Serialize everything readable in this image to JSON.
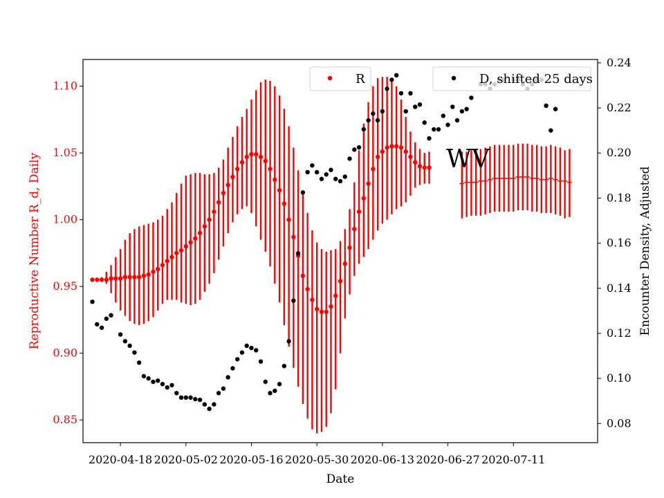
{
  "chart_data": {
    "type": "scatter",
    "title": "",
    "annotation": "WV",
    "xlabel": "Date",
    "ylabel_left": "Reproductive Number R_d, Daily",
    "ylabel_right": "Encounter Density, Adjusted",
    "x_ticks": [
      "2020-04-18",
      "2020-05-02",
      "2020-05-16",
      "2020-05-30",
      "2020-06-13",
      "2020-06-27",
      "2020-07-11"
    ],
    "y_left_ticks": [
      "0.85",
      "0.90",
      "0.95",
      "1.00",
      "1.05",
      "1.10"
    ],
    "y_right_ticks": [
      "0.08",
      "0.10",
      "0.12",
      "0.14",
      "0.16",
      "0.18",
      "0.20",
      "0.22",
      "0.24"
    ],
    "xlim": [
      "2020-04-10",
      "2020-07-29"
    ],
    "ylim_left": [
      0.833,
      1.12
    ],
    "ylim_right": [
      0.0715,
      0.2415
    ],
    "legend": [
      {
        "label": "R",
        "color": "#ff0000",
        "placement": "top-center"
      },
      {
        "label": "D, shifted 25 days",
        "color": "#000000",
        "placement": "top-right"
      }
    ],
    "colors": {
      "R": "#ff0000",
      "D": "#000000"
    },
    "series": [
      {
        "name": "R",
        "axis": "left",
        "start_date": "2020-04-12",
        "values": [
          0.955,
          0.955,
          0.955,
          0.955,
          0.956,
          0.956,
          0.956,
          0.957,
          0.957,
          0.957,
          0.957,
          0.958,
          0.959,
          0.961,
          0.963,
          0.966,
          0.969,
          0.972,
          0.975,
          0.977,
          0.98,
          0.983,
          0.986,
          0.99,
          0.995,
          1.0,
          1.006,
          1.013,
          1.02,
          1.026,
          1.032,
          1.038,
          1.043,
          1.047,
          1.049,
          1.049,
          1.047,
          1.044,
          1.038,
          1.03,
          1.022,
          1.012,
          1.0,
          0.987,
          0.973,
          0.958,
          0.948,
          0.94,
          0.933,
          0.931,
          0.931,
          0.935,
          0.943,
          0.954,
          0.967,
          0.979,
          0.993,
          1.006,
          1.016,
          1.027,
          1.038,
          1.047,
          1.051,
          1.054,
          1.055,
          1.055,
          1.054,
          1.051,
          1.047,
          1.043,
          1.04,
          1.039,
          1.039
        ],
        "err_low": [
          0.955,
          0.955,
          0.955,
          0.952,
          0.945,
          0.938,
          0.932,
          0.928,
          0.924,
          0.922,
          0.921,
          0.922,
          0.924,
          0.927,
          0.932,
          0.937,
          0.94,
          0.94,
          0.94,
          0.938,
          0.937,
          0.936,
          0.937,
          0.94,
          0.946,
          0.952,
          0.96,
          0.97,
          0.98,
          0.99,
          0.998,
          1.004,
          1.008,
          1.01,
          1.005,
          0.995,
          0.985,
          0.976,
          0.965,
          0.952,
          0.938,
          0.921,
          0.905,
          0.889,
          0.875,
          0.862,
          0.851,
          0.843,
          0.84,
          0.841,
          0.845,
          0.855,
          0.873,
          0.9,
          0.926,
          0.944,
          0.958,
          0.967,
          0.972,
          0.978,
          0.985,
          0.992,
          0.997,
          1.0,
          1.004,
          1.008,
          1.01,
          1.013,
          1.018,
          1.024,
          1.026,
          1.027,
          1.027
        ],
        "err_high": [
          0.955,
          0.955,
          0.957,
          0.961,
          0.966,
          0.972,
          0.978,
          0.985,
          0.99,
          0.993,
          0.995,
          0.996,
          0.997,
          0.998,
          1.0,
          1.003,
          1.008,
          1.013,
          1.02,
          1.027,
          1.033,
          1.034,
          1.035,
          1.035,
          1.034,
          1.034,
          1.035,
          1.039,
          1.045,
          1.054,
          1.062,
          1.07,
          1.077,
          1.083,
          1.09,
          1.097,
          1.103,
          1.105,
          1.104,
          1.1,
          1.093,
          1.083,
          1.07,
          1.054,
          1.037,
          1.02,
          1.005,
          0.992,
          0.983,
          0.978,
          0.976,
          0.977,
          0.978,
          0.984,
          0.993,
          1.008,
          1.028,
          1.052,
          1.072,
          1.088,
          1.1,
          1.106,
          1.107,
          1.107,
          1.106,
          1.1,
          1.09,
          1.077,
          1.066,
          1.058,
          1.053,
          1.05,
          1.051
        ]
      },
      {
        "name": "R_projection",
        "axis": "left",
        "start_date": "2020-06-30",
        "values": [
          1.027,
          1.028,
          1.028,
          1.028,
          1.029,
          1.029,
          1.03,
          1.031,
          1.031,
          1.031,
          1.031,
          1.031,
          1.032,
          1.032,
          1.032,
          1.031,
          1.031,
          1.03,
          1.03,
          1.031,
          1.03,
          1.029,
          1.029,
          1.028
        ],
        "err_low": [
          1.001,
          1.002,
          1.003,
          1.003,
          1.003,
          1.004,
          1.005,
          1.006,
          1.006,
          1.006,
          1.006,
          1.006,
          1.007,
          1.007,
          1.007,
          1.006,
          1.006,
          1.005,
          1.005,
          1.005,
          1.004,
          1.003,
          1.001,
          1.002
        ],
        "err_high": [
          1.051,
          1.051,
          1.052,
          1.052,
          1.053,
          1.054,
          1.055,
          1.056,
          1.056,
          1.056,
          1.056,
          1.056,
          1.057,
          1.057,
          1.057,
          1.056,
          1.056,
          1.055,
          1.055,
          1.056,
          1.055,
          1.054,
          1.052,
          1.053
        ]
      },
      {
        "name": "D, shifted 25 days",
        "axis": "right",
        "start_date": "2020-04-12",
        "values": [
          0.134,
          0.124,
          0.1225,
          0.1265,
          0.128,
          null,
          0.1195,
          0.1165,
          0.1145,
          0.1115,
          0.107,
          0.101,
          0.1,
          0.0985,
          0.099,
          0.0975,
          0.096,
          0.097,
          0.0935,
          0.0915,
          0.0915,
          0.0915,
          0.0908,
          0.0905,
          0.0885,
          0.0865,
          0.0885,
          0.0935,
          0.0955,
          0.1005,
          0.1045,
          0.1085,
          0.1115,
          0.1145,
          0.1135,
          0.1125,
          0.1075,
          0.0985,
          0.0935,
          0.0945,
          0.0975,
          0.1055,
          0.1165,
          0.1345,
          0.1555,
          0.1825,
          0.1915,
          0.1945,
          0.1915,
          0.1885,
          0.1905,
          0.1925,
          0.1885,
          0.1875,
          0.1895,
          0.1975,
          0.2015,
          0.2025,
          0.2105,
          0.2145,
          0.2175,
          0.2145,
          0.2185,
          0.2285,
          0.2325,
          0.2345,
          0.2265,
          0.2185,
          0.2265,
          0.2205,
          0.2215,
          0.2135,
          0.2065,
          0.2105,
          0.2105,
          0.2165,
          0.2125,
          0.2205,
          0.2145,
          0.2185,
          0.2195,
          0.2245,
          null,
          0.2305,
          0.2305,
          0.2285,
          0.2305,
          0.2325,
          0.2325,
          null,
          0.2325,
          0.2325,
          0.2305,
          0.2285,
          0.2305,
          0.2325,
          0.2325,
          0.221,
          0.21,
          0.2195
        ]
      }
    ]
  }
}
